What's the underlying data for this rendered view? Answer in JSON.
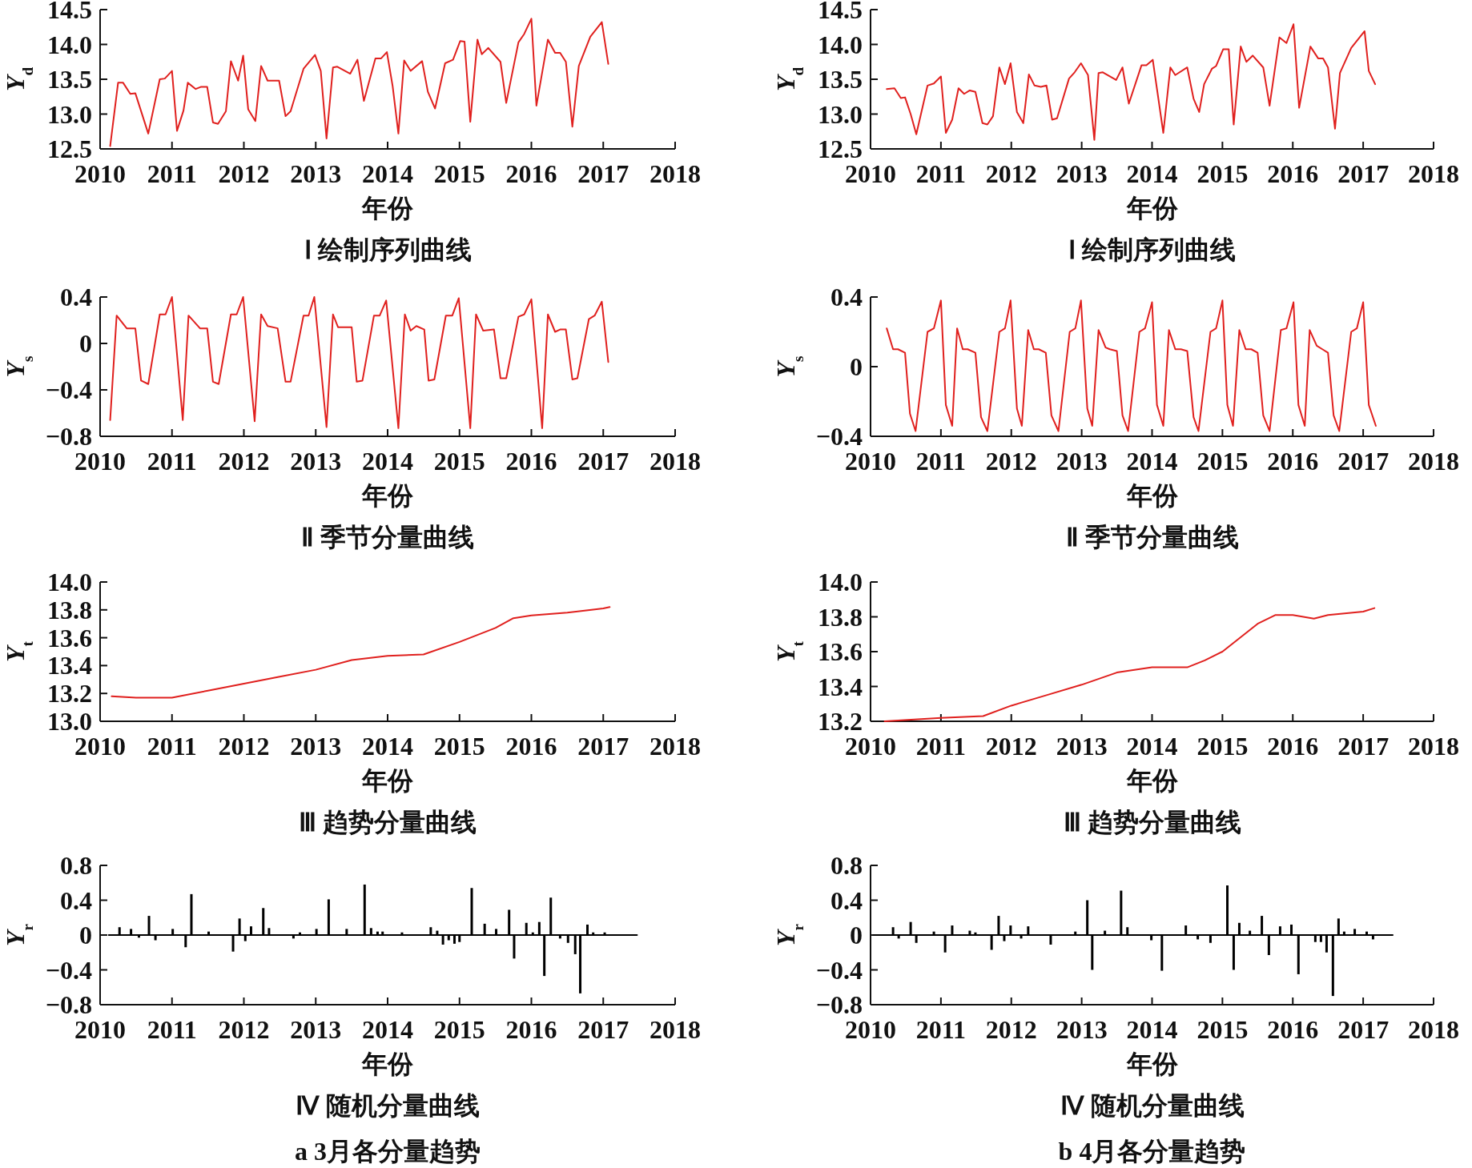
{
  "chart_data": [
    {
      "type": "line",
      "title": "Ⅰ 绘制序列曲线",
      "xlabel": "年份",
      "ylabel": "Y$_{d}$",
      "xlim": [
        2010,
        2018
      ],
      "xticks": [
        2010,
        2011,
        2012,
        2013,
        2014,
        2015,
        2016,
        2017,
        2018
      ],
      "ylim": [
        12.5,
        14.5
      ],
      "yticks": [
        12.5,
        {
          "value": 13,
          "label": "13.0"
        },
        13.5,
        {
          "value": 14,
          "label": "14.0"
        },
        14.5
      ],
      "series": [
        {
          "color": "#e0201e",
          "x": [
            2010.14,
            2010.25,
            2010.32,
            2010.42,
            2010.49,
            2010.67,
            2010.83,
            2010.9,
            2011.0,
            2011.07,
            2011.16,
            2011.22,
            2011.33,
            2011.4,
            2011.49,
            2011.57,
            2011.64,
            2011.75,
            2011.82,
            2011.92,
            2011.99,
            2012.06,
            2012.16,
            2012.24,
            2012.33,
            2012.49,
            2012.58,
            2012.65,
            2012.83,
            2012.99,
            2013.07,
            2013.15,
            2013.24,
            2013.3,
            2013.48,
            2013.58,
            2013.67,
            2013.83,
            2013.91,
            2013.99,
            2014.07,
            2014.15,
            2014.23,
            2014.32,
            2014.48,
            2014.56,
            2014.66,
            2014.8,
            2014.91,
            2015.01,
            2015.07,
            2015.15,
            2015.25,
            2015.31,
            2015.4,
            2015.57,
            2015.65,
            2015.82,
            2015.9,
            2016.0,
            2016.07,
            2016.23,
            2016.33,
            2016.4,
            2016.48,
            2016.57,
            2016.66,
            2016.82,
            2016.98,
            2017.07
          ],
          "values": [
            12.54,
            13.45,
            13.45,
            13.29,
            13.3,
            12.72,
            13.5,
            13.51,
            13.62,
            12.76,
            13.05,
            13.45,
            13.36,
            13.39,
            13.39,
            12.88,
            12.86,
            13.04,
            13.76,
            13.48,
            13.84,
            13.07,
            12.9,
            13.69,
            13.48,
            13.48,
            12.97,
            13.04,
            13.65,
            13.85,
            13.62,
            12.65,
            13.67,
            13.68,
            13.58,
            13.78,
            13.19,
            13.8,
            13.8,
            13.89,
            13.4,
            12.72,
            13.77,
            13.62,
            13.76,
            13.32,
            13.08,
            13.73,
            13.78,
            14.05,
            14.04,
            12.89,
            14.07,
            13.86,
            13.95,
            13.75,
            13.16,
            14.03,
            14.15,
            14.37,
            13.12,
            14.07,
            13.88,
            13.88,
            13.75,
            12.82,
            13.69,
            14.11,
            14.32,
            13.72
          ]
        }
      ]
    },
    {
      "type": "line",
      "title": "Ⅰ 绘制序列曲线",
      "xlabel": "年份",
      "ylabel": "Y$_{d}$",
      "xlim": [
        2010,
        2018
      ],
      "xticks": [
        2010,
        2011,
        2012,
        2013,
        2014,
        2015,
        2016,
        2017,
        2018
      ],
      "ylim": [
        12.5,
        14.5
      ],
      "yticks": [
        12.5,
        {
          "value": 13,
          "label": "13.0"
        },
        13.5,
        {
          "value": 14,
          "label": "14.0"
        },
        14.5
      ],
      "series": [
        {
          "color": "#e0201e",
          "x": [
            2010.23,
            2010.34,
            2010.43,
            2010.49,
            2010.57,
            2010.65,
            2010.81,
            2010.9,
            2011.0,
            2011.07,
            2011.16,
            2011.25,
            2011.33,
            2011.41,
            2011.49,
            2011.59,
            2011.66,
            2011.74,
            2011.83,
            2011.91,
            2011.99,
            2012.08,
            2012.17,
            2012.25,
            2012.33,
            2012.42,
            2012.5,
            2012.58,
            2012.65,
            2012.82,
            2012.9,
            2012.99,
            2013.09,
            2013.18,
            2013.24,
            2013.3,
            2013.49,
            2013.58,
            2013.67,
            2013.85,
            2013.92,
            2014.01,
            2014.16,
            2014.26,
            2014.33,
            2014.5,
            2014.59,
            2014.67,
            2014.74,
            2014.85,
            2014.91,
            2015.01,
            2015.09,
            2015.16,
            2015.26,
            2015.34,
            2015.43,
            2015.58,
            2015.67,
            2015.81,
            2015.91,
            2016.01,
            2016.09,
            2016.25,
            2016.36,
            2016.43,
            2016.5,
            2016.6,
            2016.67,
            2016.83,
            2017.02,
            2017.08,
            2017.17
          ],
          "values": [
            13.36,
            13.37,
            13.23,
            13.24,
            13.0,
            12.71,
            13.41,
            13.44,
            13.54,
            12.73,
            12.92,
            13.37,
            13.29,
            13.34,
            13.32,
            12.87,
            12.85,
            12.97,
            13.67,
            13.43,
            13.73,
            13.03,
            12.87,
            13.57,
            13.41,
            13.39,
            13.41,
            12.92,
            12.94,
            13.51,
            13.6,
            13.73,
            13.56,
            12.63,
            13.59,
            13.6,
            13.49,
            13.67,
            13.15,
            13.7,
            13.7,
            13.78,
            12.73,
            13.67,
            13.56,
            13.67,
            13.22,
            13.03,
            13.43,
            13.65,
            13.69,
            13.93,
            13.93,
            12.85,
            13.97,
            13.75,
            13.84,
            13.67,
            13.12,
            14.1,
            14.02,
            14.29,
            13.09,
            13.97,
            13.8,
            13.8,
            13.67,
            12.79,
            13.59,
            13.95,
            14.19,
            13.62,
            13.43
          ]
        }
      ]
    },
    {
      "type": "line",
      "title": "Ⅱ 季节分量曲线",
      "xlabel": "年份",
      "ylabel": "Y$_{s}$",
      "xlim": [
        2010,
        2018
      ],
      "xticks": [
        2010,
        2011,
        2012,
        2013,
        2014,
        2015,
        2016,
        2017,
        2018
      ],
      "ylim": [
        -0.8,
        0.4
      ],
      "yticks": [
        {
          "value": -0.8,
          "label": "−0.8"
        },
        {
          "value": -0.4,
          "label": "−0.4"
        },
        0,
        0.4
      ],
      "series": [
        {
          "color": "#e0201e",
          "x": [
            2010.14,
            2010.23,
            2010.37,
            2010.49,
            2010.57,
            2010.67,
            2010.83,
            2010.91,
            2011.0,
            2011.15,
            2011.23,
            2011.39,
            2011.49,
            2011.57,
            2011.65,
            2011.82,
            2011.9,
            2011.99,
            2012.15,
            2012.24,
            2012.33,
            2012.47,
            2012.58,
            2012.65,
            2012.83,
            2012.9,
            2012.98,
            2013.15,
            2013.24,
            2013.31,
            2013.5,
            2013.57,
            2013.65,
            2013.81,
            2013.89,
            2013.98,
            2014.15,
            2014.24,
            2014.32,
            2014.4,
            2014.51,
            2014.57,
            2014.65,
            2014.81,
            2014.9,
            2014.99,
            2015.15,
            2015.23,
            2015.33,
            2015.48,
            2015.57,
            2015.65,
            2015.82,
            2015.9,
            2016.0,
            2016.15,
            2016.23,
            2016.33,
            2016.4,
            2016.48,
            2016.57,
            2016.64,
            2016.8,
            2016.88,
            2016.98,
            2017.07
          ],
          "values": [
            -0.66,
            0.24,
            0.13,
            0.13,
            -0.32,
            -0.35,
            0.25,
            0.25,
            0.4,
            -0.66,
            0.24,
            0.13,
            0.13,
            -0.33,
            -0.35,
            0.25,
            0.25,
            0.4,
            -0.67,
            0.25,
            0.15,
            0.13,
            -0.33,
            -0.33,
            0.24,
            0.24,
            0.4,
            -0.72,
            0.25,
            0.14,
            0.14,
            -0.33,
            -0.32,
            0.24,
            0.24,
            0.37,
            -0.73,
            0.25,
            0.11,
            0.15,
            0.12,
            -0.32,
            -0.31,
            0.24,
            0.24,
            0.39,
            -0.73,
            0.25,
            0.11,
            0.12,
            -0.3,
            -0.3,
            0.23,
            0.25,
            0.38,
            -0.73,
            0.25,
            0.1,
            0.12,
            0.12,
            -0.31,
            -0.3,
            0.21,
            0.24,
            0.36,
            -0.16
          ]
        }
      ]
    },
    {
      "type": "line",
      "title": "Ⅱ 季节分量曲线",
      "xlabel": "年份",
      "ylabel": "Y$_{s}$",
      "xlim": [
        2010,
        2018
      ],
      "xticks": [
        2010,
        2011,
        2012,
        2013,
        2014,
        2015,
        2016,
        2017,
        2018
      ],
      "ylim": [
        -0.4,
        0.4
      ],
      "yticks": [
        {
          "value": -0.4,
          "label": "−0.4"
        },
        0,
        0.4
      ],
      "series": [
        {
          "color": "#e0201e",
          "x": [
            2010.23,
            2010.32,
            2010.39,
            2010.49,
            2010.56,
            2010.64,
            2010.81,
            2010.9,
            2011.0,
            2011.07,
            2011.16,
            2011.23,
            2011.31,
            2011.38,
            2011.49,
            2011.57,
            2011.66,
            2011.83,
            2011.91,
            2011.99,
            2012.08,
            2012.15,
            2012.24,
            2012.32,
            2012.39,
            2012.49,
            2012.57,
            2012.67,
            2012.83,
            2012.91,
            2012.99,
            2013.08,
            2013.15,
            2013.24,
            2013.34,
            2013.4,
            2013.5,
            2013.58,
            2013.66,
            2013.82,
            2013.9,
            2014.0,
            2014.07,
            2014.16,
            2014.24,
            2014.33,
            2014.41,
            2014.5,
            2014.59,
            2014.66,
            2014.83,
            2014.91,
            2015.0,
            2015.07,
            2015.15,
            2015.24,
            2015.33,
            2015.41,
            2015.5,
            2015.58,
            2015.67,
            2015.83,
            2015.91,
            2016.01,
            2016.08,
            2016.17,
            2016.24,
            2016.34,
            2016.42,
            2016.5,
            2016.58,
            2016.66,
            2016.83,
            2016.91,
            2017.0,
            2017.08,
            2017.18
          ],
          "values": [
            0.22,
            0.1,
            0.1,
            0.08,
            -0.27,
            -0.37,
            0.2,
            0.22,
            0.38,
            -0.22,
            -0.34,
            0.22,
            0.1,
            0.1,
            0.08,
            -0.29,
            -0.37,
            0.2,
            0.22,
            0.38,
            -0.24,
            -0.34,
            0.21,
            0.1,
            0.1,
            0.08,
            -0.28,
            -0.37,
            0.2,
            0.22,
            0.38,
            -0.24,
            -0.34,
            0.21,
            0.11,
            0.1,
            0.09,
            -0.28,
            -0.37,
            0.2,
            0.22,
            0.37,
            -0.22,
            -0.34,
            0.21,
            0.1,
            0.1,
            0.09,
            -0.29,
            -0.37,
            0.2,
            0.22,
            0.38,
            -0.22,
            -0.34,
            0.21,
            0.1,
            0.1,
            0.08,
            -0.28,
            -0.37,
            0.21,
            0.22,
            0.37,
            -0.22,
            -0.34,
            0.21,
            0.12,
            0.1,
            0.08,
            -0.28,
            -0.37,
            0.2,
            0.22,
            0.37,
            -0.22,
            -0.34
          ]
        }
      ]
    },
    {
      "type": "line",
      "title": "Ⅲ 趋势分量曲线",
      "xlabel": "年份",
      "ylabel": "Y$_{t}$",
      "xlim": [
        2010,
        2018
      ],
      "xticks": [
        2010,
        2011,
        2012,
        2013,
        2014,
        2015,
        2016,
        2017,
        2018
      ],
      "ylim": [
        13.0,
        14.0
      ],
      "yticks": [
        {
          "value": 13,
          "label": "13.0"
        },
        13.2,
        13.4,
        13.6,
        13.8,
        {
          "value": 14,
          "label": "14.0"
        }
      ],
      "series": [
        {
          "color": "#e0201e",
          "x": [
            2010.16,
            2010.5,
            2011.0,
            2011.5,
            2012.0,
            2012.5,
            2013.0,
            2013.5,
            2014.0,
            2014.5,
            2015.0,
            2015.5,
            2015.75,
            2016.0,
            2016.5,
            2017.0,
            2017.09
          ],
          "values": [
            13.18,
            13.17,
            13.17,
            13.22,
            13.27,
            13.32,
            13.37,
            13.44,
            13.47,
            13.48,
            13.57,
            13.67,
            13.74,
            13.76,
            13.78,
            13.81,
            13.82
          ]
        }
      ]
    },
    {
      "type": "line",
      "title": "Ⅲ 趋势分量曲线",
      "xlabel": "年份",
      "ylabel": "Y$_{t}$",
      "xlim": [
        2010,
        2018
      ],
      "xticks": [
        2010,
        2011,
        2012,
        2013,
        2014,
        2015,
        2016,
        2017,
        2018
      ],
      "ylim": [
        13.2,
        14.0
      ],
      "yticks": [
        13.2,
        13.4,
        13.6,
        13.8,
        {
          "value": 14,
          "label": "14.0"
        }
      ],
      "series": [
        {
          "color": "#e0201e",
          "x": [
            2010.2,
            2011.0,
            2011.6,
            2012.0,
            2012.5,
            2013.0,
            2013.5,
            2014.0,
            2014.5,
            2014.75,
            2015.0,
            2015.5,
            2015.75,
            2016.0,
            2016.3,
            2016.5,
            2017.0,
            2017.16
          ],
          "values": [
            13.2,
            13.22,
            13.23,
            13.29,
            13.35,
            13.41,
            13.48,
            13.51,
            13.51,
            13.55,
            13.6,
            13.76,
            13.81,
            13.81,
            13.79,
            13.81,
            13.83,
            13.85
          ]
        }
      ]
    },
    {
      "type": "bar",
      "title": "Ⅳ 随机分量曲线",
      "xlabel": "年份",
      "ylabel": "Y$_{r}$",
      "annotations": [
        "a 3月各分量趋势"
      ],
      "xlim": [
        2010,
        2018
      ],
      "xticks": [
        2010,
        2011,
        2012,
        2013,
        2014,
        2015,
        2016,
        2017,
        2018
      ],
      "ylim": [
        -0.8,
        0.8
      ],
      "yticks": [
        {
          "value": -0.8,
          "label": "−0.8"
        },
        {
          "value": -0.4,
          "label": "−0.4"
        },
        0,
        0.4,
        0.8
      ],
      "series": [
        {
          "type": "line",
          "color": "#000000",
          "x": [
            2010.12,
            2017.47
          ],
          "values": [
            0,
            0
          ]
        },
        {
          "color": "#000000",
          "x": [
            2010.27,
            2010.43,
            2010.54,
            2010.68,
            2010.77,
            2011.01,
            2011.19,
            2011.27,
            2011.51,
            2011.85,
            2011.94,
            2012.02,
            2012.1,
            2012.27,
            2012.35,
            2012.69,
            2012.78,
            2013.01,
            2013.18,
            2013.43,
            2013.68,
            2013.77,
            2013.86,
            2013.93,
            2014.2,
            2014.6,
            2014.69,
            2014.77,
            2014.85,
            2014.93,
            2015.0,
            2015.17,
            2015.35,
            2015.51,
            2015.69,
            2015.76,
            2015.93,
            2016.02,
            2016.11,
            2016.18,
            2016.27,
            2016.4,
            2016.51,
            2016.61,
            2016.68,
            2016.78,
            2016.86,
            2017.02
          ],
          "values": [
            0.09,
            0.07,
            -0.03,
            0.22,
            -0.06,
            0.07,
            -0.14,
            0.47,
            0.04,
            -0.19,
            0.19,
            -0.07,
            0.1,
            0.31,
            0.08,
            -0.04,
            0.03,
            0.07,
            0.41,
            0.07,
            0.58,
            0.08,
            0.04,
            0.04,
            0.03,
            0.09,
            0.05,
            -0.11,
            -0.06,
            -0.1,
            -0.08,
            0.54,
            0.13,
            0.07,
            0.29,
            -0.27,
            0.14,
            0.03,
            0.15,
            -0.47,
            0.43,
            -0.04,
            -0.09,
            -0.22,
            -0.67,
            0.12,
            0.03,
            0.03
          ]
        }
      ]
    },
    {
      "type": "bar",
      "title": "Ⅳ 随机分量曲线",
      "xlabel": "年份",
      "ylabel": "Y$_{r}$",
      "annotations": [
        "b 4月各分量趋势"
      ],
      "xlim": [
        2010,
        2018
      ],
      "xticks": [
        2010,
        2011,
        2012,
        2013,
        2014,
        2015,
        2016,
        2017,
        2018
      ],
      "ylim": [
        -0.8,
        0.8
      ],
      "yticks": [
        {
          "value": -0.8,
          "label": "−0.8"
        },
        {
          "value": -0.4,
          "label": "−0.4"
        },
        0,
        0.4,
        0.8
      ],
      "series": [
        {
          "type": "line",
          "color": "#000000",
          "x": [
            2010.04,
            2017.42
          ],
          "values": [
            0,
            0
          ]
        },
        {
          "color": "#000000",
          "x": [
            2010.32,
            2010.4,
            2010.57,
            2010.65,
            2010.9,
            2011.06,
            2011.16,
            2011.41,
            2011.49,
            2011.72,
            2011.82,
            2011.9,
            2011.99,
            2012.14,
            2012.24,
            2012.56,
            2012.91,
            2013.08,
            2013.15,
            2013.33,
            2013.56,
            2013.65,
            2013.99,
            2014.14,
            2014.48,
            2014.65,
            2014.83,
            2015.07,
            2015.16,
            2015.24,
            2015.39,
            2015.56,
            2015.66,
            2015.82,
            2015.98,
            2016.08,
            2016.32,
            2016.4,
            2016.48,
            2016.57,
            2016.65,
            2016.73,
            2016.88,
            2017.05,
            2017.14
          ],
          "values": [
            0.09,
            -0.04,
            0.15,
            -0.09,
            0.04,
            -0.2,
            0.11,
            0.05,
            0.03,
            -0.17,
            0.22,
            -0.07,
            0.11,
            -0.04,
            0.1,
            -0.11,
            0.04,
            0.4,
            -0.4,
            0.05,
            0.51,
            0.09,
            -0.06,
            -0.41,
            0.11,
            -0.05,
            -0.09,
            0.57,
            -0.4,
            0.14,
            0.05,
            0.22,
            -0.23,
            0.1,
            0.12,
            -0.45,
            -0.08,
            -0.08,
            -0.2,
            -0.7,
            0.19,
            0.04,
            0.07,
            0.04,
            -0.05
          ]
        }
      ]
    }
  ]
}
